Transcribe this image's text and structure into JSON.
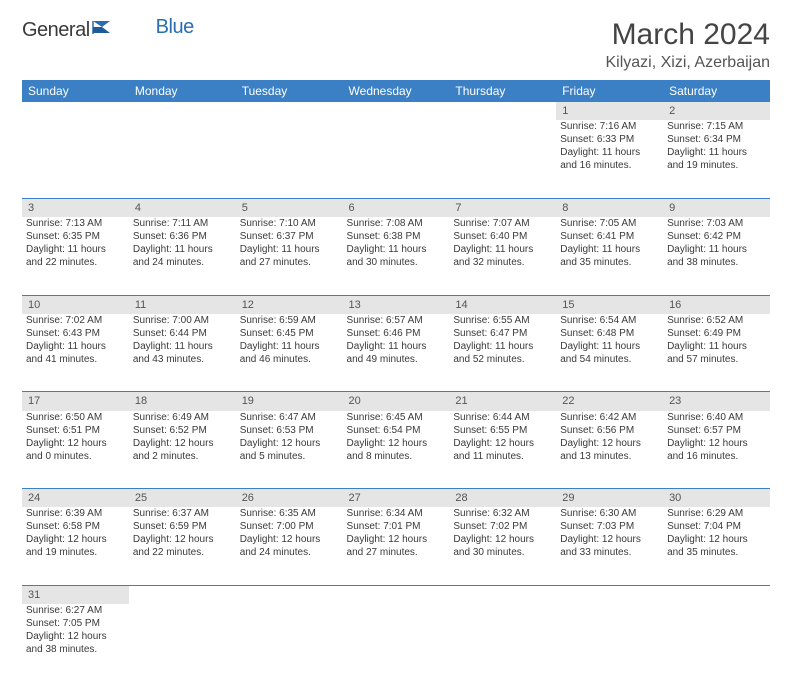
{
  "brand": {
    "name1": "General",
    "name2": "Blue"
  },
  "title": "March 2024",
  "location": "Kilyazi, Xizi, Azerbaijan",
  "colors": {
    "header_bg": "#3b7fc4",
    "header_text": "#ffffff",
    "daynum_bg": "#e5e5e5",
    "cell_border": "#3b7fc4",
    "text": "#3a3a3a",
    "brand_blue": "#2a6db3"
  },
  "typography": {
    "title_fontsize": 30,
    "location_fontsize": 16,
    "dayheader_fontsize": 12,
    "daynum_fontsize": 11,
    "cell_fontsize": 10
  },
  "day_headers": [
    "Sunday",
    "Monday",
    "Tuesday",
    "Wednesday",
    "Thursday",
    "Friday",
    "Saturday"
  ],
  "weeks": [
    {
      "nums": [
        "",
        "",
        "",
        "",
        "",
        "1",
        "2"
      ],
      "cells": [
        null,
        null,
        null,
        null,
        null,
        {
          "sunrise": "Sunrise: 7:16 AM",
          "sunset": "Sunset: 6:33 PM",
          "day1": "Daylight: 11 hours",
          "day2": "and 16 minutes."
        },
        {
          "sunrise": "Sunrise: 7:15 AM",
          "sunset": "Sunset: 6:34 PM",
          "day1": "Daylight: 11 hours",
          "day2": "and 19 minutes."
        }
      ]
    },
    {
      "nums": [
        "3",
        "4",
        "5",
        "6",
        "7",
        "8",
        "9"
      ],
      "cells": [
        {
          "sunrise": "Sunrise: 7:13 AM",
          "sunset": "Sunset: 6:35 PM",
          "day1": "Daylight: 11 hours",
          "day2": "and 22 minutes."
        },
        {
          "sunrise": "Sunrise: 7:11 AM",
          "sunset": "Sunset: 6:36 PM",
          "day1": "Daylight: 11 hours",
          "day2": "and 24 minutes."
        },
        {
          "sunrise": "Sunrise: 7:10 AM",
          "sunset": "Sunset: 6:37 PM",
          "day1": "Daylight: 11 hours",
          "day2": "and 27 minutes."
        },
        {
          "sunrise": "Sunrise: 7:08 AM",
          "sunset": "Sunset: 6:38 PM",
          "day1": "Daylight: 11 hours",
          "day2": "and 30 minutes."
        },
        {
          "sunrise": "Sunrise: 7:07 AM",
          "sunset": "Sunset: 6:40 PM",
          "day1": "Daylight: 11 hours",
          "day2": "and 32 minutes."
        },
        {
          "sunrise": "Sunrise: 7:05 AM",
          "sunset": "Sunset: 6:41 PM",
          "day1": "Daylight: 11 hours",
          "day2": "and 35 minutes."
        },
        {
          "sunrise": "Sunrise: 7:03 AM",
          "sunset": "Sunset: 6:42 PM",
          "day1": "Daylight: 11 hours",
          "day2": "and 38 minutes."
        }
      ]
    },
    {
      "nums": [
        "10",
        "11",
        "12",
        "13",
        "14",
        "15",
        "16"
      ],
      "cells": [
        {
          "sunrise": "Sunrise: 7:02 AM",
          "sunset": "Sunset: 6:43 PM",
          "day1": "Daylight: 11 hours",
          "day2": "and 41 minutes."
        },
        {
          "sunrise": "Sunrise: 7:00 AM",
          "sunset": "Sunset: 6:44 PM",
          "day1": "Daylight: 11 hours",
          "day2": "and 43 minutes."
        },
        {
          "sunrise": "Sunrise: 6:59 AM",
          "sunset": "Sunset: 6:45 PM",
          "day1": "Daylight: 11 hours",
          "day2": "and 46 minutes."
        },
        {
          "sunrise": "Sunrise: 6:57 AM",
          "sunset": "Sunset: 6:46 PM",
          "day1": "Daylight: 11 hours",
          "day2": "and 49 minutes."
        },
        {
          "sunrise": "Sunrise: 6:55 AM",
          "sunset": "Sunset: 6:47 PM",
          "day1": "Daylight: 11 hours",
          "day2": "and 52 minutes."
        },
        {
          "sunrise": "Sunrise: 6:54 AM",
          "sunset": "Sunset: 6:48 PM",
          "day1": "Daylight: 11 hours",
          "day2": "and 54 minutes."
        },
        {
          "sunrise": "Sunrise: 6:52 AM",
          "sunset": "Sunset: 6:49 PM",
          "day1": "Daylight: 11 hours",
          "day2": "and 57 minutes."
        }
      ]
    },
    {
      "nums": [
        "17",
        "18",
        "19",
        "20",
        "21",
        "22",
        "23"
      ],
      "cells": [
        {
          "sunrise": "Sunrise: 6:50 AM",
          "sunset": "Sunset: 6:51 PM",
          "day1": "Daylight: 12 hours",
          "day2": "and 0 minutes."
        },
        {
          "sunrise": "Sunrise: 6:49 AM",
          "sunset": "Sunset: 6:52 PM",
          "day1": "Daylight: 12 hours",
          "day2": "and 2 minutes."
        },
        {
          "sunrise": "Sunrise: 6:47 AM",
          "sunset": "Sunset: 6:53 PM",
          "day1": "Daylight: 12 hours",
          "day2": "and 5 minutes."
        },
        {
          "sunrise": "Sunrise: 6:45 AM",
          "sunset": "Sunset: 6:54 PM",
          "day1": "Daylight: 12 hours",
          "day2": "and 8 minutes."
        },
        {
          "sunrise": "Sunrise: 6:44 AM",
          "sunset": "Sunset: 6:55 PM",
          "day1": "Daylight: 12 hours",
          "day2": "and 11 minutes."
        },
        {
          "sunrise": "Sunrise: 6:42 AM",
          "sunset": "Sunset: 6:56 PM",
          "day1": "Daylight: 12 hours",
          "day2": "and 13 minutes."
        },
        {
          "sunrise": "Sunrise: 6:40 AM",
          "sunset": "Sunset: 6:57 PM",
          "day1": "Daylight: 12 hours",
          "day2": "and 16 minutes."
        }
      ]
    },
    {
      "nums": [
        "24",
        "25",
        "26",
        "27",
        "28",
        "29",
        "30"
      ],
      "cells": [
        {
          "sunrise": "Sunrise: 6:39 AM",
          "sunset": "Sunset: 6:58 PM",
          "day1": "Daylight: 12 hours",
          "day2": "and 19 minutes."
        },
        {
          "sunrise": "Sunrise: 6:37 AM",
          "sunset": "Sunset: 6:59 PM",
          "day1": "Daylight: 12 hours",
          "day2": "and 22 minutes."
        },
        {
          "sunrise": "Sunrise: 6:35 AM",
          "sunset": "Sunset: 7:00 PM",
          "day1": "Daylight: 12 hours",
          "day2": "and 24 minutes."
        },
        {
          "sunrise": "Sunrise: 6:34 AM",
          "sunset": "Sunset: 7:01 PM",
          "day1": "Daylight: 12 hours",
          "day2": "and 27 minutes."
        },
        {
          "sunrise": "Sunrise: 6:32 AM",
          "sunset": "Sunset: 7:02 PM",
          "day1": "Daylight: 12 hours",
          "day2": "and 30 minutes."
        },
        {
          "sunrise": "Sunrise: 6:30 AM",
          "sunset": "Sunset: 7:03 PM",
          "day1": "Daylight: 12 hours",
          "day2": "and 33 minutes."
        },
        {
          "sunrise": "Sunrise: 6:29 AM",
          "sunset": "Sunset: 7:04 PM",
          "day1": "Daylight: 12 hours",
          "day2": "and 35 minutes."
        }
      ]
    },
    {
      "nums": [
        "31",
        "",
        "",
        "",
        "",
        "",
        ""
      ],
      "cells": [
        {
          "sunrise": "Sunrise: 6:27 AM",
          "sunset": "Sunset: 7:05 PM",
          "day1": "Daylight: 12 hours",
          "day2": "and 38 minutes."
        },
        null,
        null,
        null,
        null,
        null,
        null
      ]
    }
  ]
}
